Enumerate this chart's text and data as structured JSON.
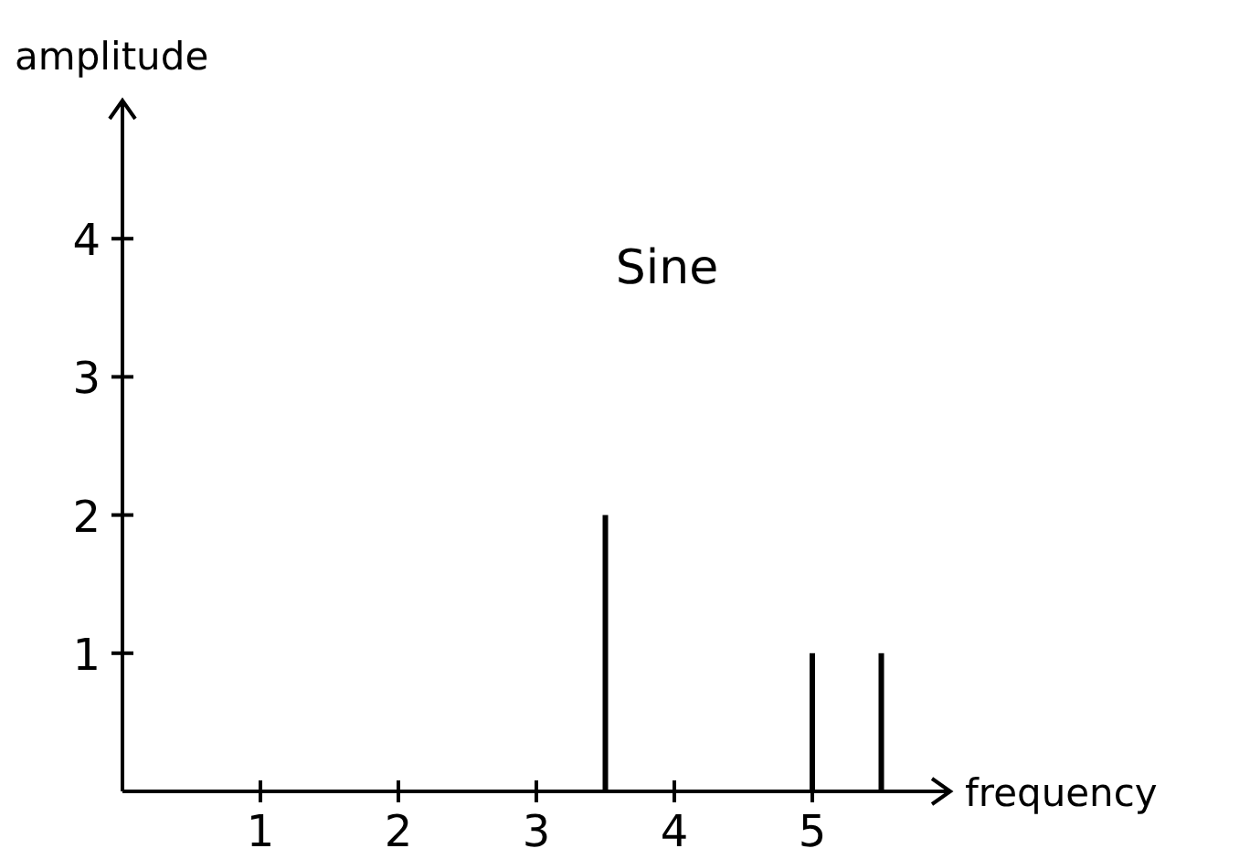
{
  "chart_data": {
    "type": "bar",
    "title": "Sine",
    "xlabel": "frequency",
    "ylabel": "amplitude",
    "x": [
      3.5,
      5,
      5.5
    ],
    "values": [
      2,
      1,
      1
    ],
    "color": "#000000",
    "xlim": [
      0,
      6
    ],
    "ylim": [
      0,
      5
    ],
    "xticks": [
      1,
      2,
      3,
      4,
      5
    ],
    "yticks": [
      1,
      2,
      3,
      4
    ],
    "grid": false
  }
}
